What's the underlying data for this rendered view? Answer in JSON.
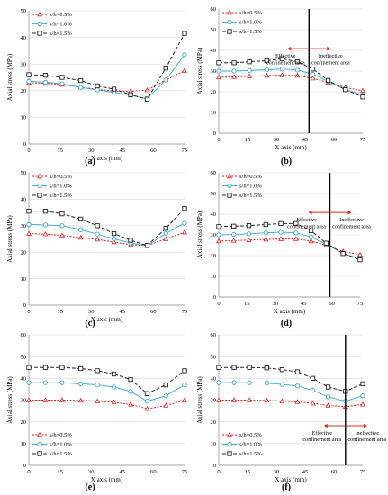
{
  "figure": {
    "panel_labels": [
      "(a)",
      "(b)",
      "(c)",
      "(d)",
      "(e)",
      "(f)"
    ]
  },
  "colors": {
    "s05": "#e02020",
    "s10": "#3aa6d8",
    "s15": "#222222",
    "divider": "#000000",
    "arrow": "#d62b1e",
    "grid": "#d9d9d9"
  },
  "chart_data": [
    {
      "panel": "(a)",
      "type": "line",
      "xlabel": "X axis (mm)",
      "ylabel": "Axial stress (MPa)",
      "xlim": [
        0,
        75
      ],
      "ylim": [
        0,
        50
      ],
      "xticks": [
        "0",
        "15",
        "30",
        "45",
        "60",
        "75"
      ],
      "yticks": [
        "0",
        "10",
        "20",
        "30",
        "40",
        "50"
      ],
      "legend_position": "top-left",
      "grid": true,
      "series": [
        {
          "name": "s/h=0.5%",
          "x": [
            0,
            8,
            16,
            25,
            33,
            41,
            49,
            57,
            66,
            75
          ],
          "values": [
            23,
            22.8,
            22.3,
            21.3,
            20.5,
            19.8,
            19.8,
            20.2,
            24,
            27.5
          ]
        },
        {
          "name": "s/h=1.0%",
          "x": [
            0,
            8,
            16,
            25,
            33,
            41,
            49,
            57,
            66,
            75
          ],
          "values": [
            23.5,
            23.2,
            22.6,
            21.2,
            20.3,
            19.4,
            18.3,
            17,
            24,
            33.5
          ]
        },
        {
          "name": "s/h=1.5%",
          "x": [
            0,
            8,
            16,
            25,
            33,
            41,
            49,
            57,
            66,
            75
          ],
          "values": [
            26,
            25.8,
            25,
            23.8,
            21.8,
            20.6,
            18.5,
            16.8,
            28.5,
            41.5
          ]
        }
      ],
      "annotations": [],
      "divider_x": null
    },
    {
      "panel": "(b)",
      "type": "line",
      "xlabel": "X axis (mm)",
      "ylabel": "Axial stress (MPa)",
      "xlim": [
        0,
        75
      ],
      "ylim": [
        0,
        60
      ],
      "xticks": [
        "0",
        "15",
        "30",
        "45",
        "60",
        "75"
      ],
      "yticks": [
        "0",
        "10",
        "20",
        "30",
        "40",
        "50",
        "60"
      ],
      "legend_position": "top-left",
      "grid": true,
      "series": [
        {
          "name": "s/h=0.5%",
          "x": [
            0,
            8,
            16,
            25,
            33,
            41,
            49,
            57,
            66,
            75
          ],
          "values": [
            27,
            27.2,
            27.5,
            27.8,
            28,
            27.8,
            26.5,
            24.5,
            22,
            20.5
          ]
        },
        {
          "name": "s/h=1.0%",
          "x": [
            0,
            8,
            16,
            25,
            33,
            41,
            49,
            57,
            66,
            75
          ],
          "values": [
            30,
            30,
            30.3,
            30.6,
            31,
            30.5,
            28.5,
            25,
            21,
            18.5
          ]
        },
        {
          "name": "s/h=1.5%",
          "x": [
            0,
            8,
            16,
            25,
            33,
            41,
            49,
            57,
            66,
            75
          ],
          "values": [
            34,
            34,
            34.5,
            35,
            36,
            34.5,
            31,
            25.5,
            21,
            17.5
          ]
        }
      ],
      "annotations": [
        "Effective confinement area",
        "Ineffective confinement area"
      ],
      "divider_x": 47
    },
    {
      "panel": "(c)",
      "type": "line",
      "xlabel": "X axis (mm)",
      "ylabel": "Axial stress (MPa)",
      "xlim": [
        0,
        75
      ],
      "ylim": [
        0,
        50
      ],
      "xticks": [
        "0",
        "15",
        "30",
        "45",
        "60",
        "75"
      ],
      "yticks": [
        "0",
        "10",
        "20",
        "30",
        "40",
        "50"
      ],
      "legend_position": "top-left",
      "grid": true,
      "series": [
        {
          "name": "s/h=0.5%",
          "x": [
            0,
            8,
            16,
            25,
            33,
            41,
            49,
            57,
            66,
            75
          ],
          "values": [
            27,
            26.8,
            26.3,
            25.5,
            24.8,
            23.8,
            22.8,
            22.5,
            25,
            27.5
          ]
        },
        {
          "name": "s/h=1.0%",
          "x": [
            0,
            8,
            16,
            25,
            33,
            41,
            49,
            57,
            66,
            75
          ],
          "values": [
            30.5,
            30.3,
            30,
            28.5,
            26.8,
            25,
            23.5,
            22.5,
            27,
            31
          ]
        },
        {
          "name": "s/h=1.5%",
          "x": [
            0,
            8,
            16,
            25,
            33,
            41,
            49,
            57,
            66,
            75
          ],
          "values": [
            35.5,
            35.5,
            34.5,
            32.5,
            30,
            27,
            24.5,
            22.5,
            29,
            36.5
          ]
        }
      ],
      "annotations": [],
      "divider_x": null
    },
    {
      "panel": "(d)",
      "type": "line",
      "xlabel": "X axis (mm)",
      "ylabel": "Axial stress (MPa)",
      "xlim": [
        0,
        75
      ],
      "ylim": [
        0,
        60
      ],
      "xticks": [
        "0",
        "15",
        "30",
        "45",
        "60",
        "75"
      ],
      "yticks": [
        "0",
        "10",
        "20",
        "30",
        "40",
        "50",
        "60"
      ],
      "legend_position": "top-left",
      "grid": true,
      "series": [
        {
          "name": "s/h=0.5%",
          "x": [
            0,
            8,
            16,
            25,
            33,
            41,
            49,
            57,
            66,
            75
          ],
          "values": [
            27,
            27.2,
            27.5,
            27.8,
            28,
            28,
            27,
            25,
            22,
            20.5
          ]
        },
        {
          "name": "s/h=1.0%",
          "x": [
            0,
            8,
            16,
            25,
            33,
            41,
            49,
            57,
            66,
            75
          ],
          "values": [
            30,
            30.2,
            30.5,
            31,
            31.3,
            31,
            29,
            25.5,
            21,
            18.5
          ]
        },
        {
          "name": "s/h=1.5%",
          "x": [
            0,
            8,
            16,
            25,
            33,
            41,
            49,
            57,
            66,
            75
          ],
          "values": [
            34,
            34.2,
            34.5,
            35,
            35.5,
            35.5,
            32,
            26,
            21,
            18
          ]
        }
      ],
      "annotations": [
        "Effective confinement area",
        "Ineffective confinement area"
      ],
      "divider_x": 59
    },
    {
      "panel": "(e)",
      "type": "line",
      "xlabel": "X axis (mm)",
      "ylabel": "Axial stress (MPa)",
      "xlim": [
        0,
        75
      ],
      "ylim": [
        0,
        60
      ],
      "xticks": [
        "0",
        "15",
        "30",
        "45",
        "60",
        "75"
      ],
      "yticks": [
        "0",
        "10",
        "20",
        "30",
        "40",
        "50",
        "60"
      ],
      "legend_position": "bottom-left",
      "grid": true,
      "series": [
        {
          "name": "s/h=0.5%",
          "x": [
            0,
            8,
            16,
            25,
            33,
            41,
            49,
            57,
            66,
            75
          ],
          "values": [
            30,
            30,
            30,
            29.8,
            29.5,
            29,
            28,
            26,
            27.5,
            30
          ]
        },
        {
          "name": "s/h=1.0%",
          "x": [
            0,
            8,
            16,
            25,
            33,
            41,
            49,
            57,
            66,
            75
          ],
          "values": [
            38,
            38,
            38,
            37.5,
            37,
            36,
            34,
            29.5,
            32,
            37
          ]
        },
        {
          "name": "s/h=1.5%",
          "x": [
            0,
            8,
            16,
            25,
            33,
            41,
            49,
            57,
            66,
            75
          ],
          "values": [
            45,
            45,
            45,
            44.5,
            43.5,
            42,
            39.5,
            33,
            37,
            43.5
          ]
        }
      ],
      "annotations": [],
      "divider_x": null
    },
    {
      "panel": "(f)",
      "type": "line",
      "xlabel": "X axis (mm)",
      "ylabel": "Axial stress (MPa)",
      "xlim": [
        0,
        75
      ],
      "ylim": [
        0,
        60
      ],
      "xticks": [
        "0",
        "15",
        "30",
        "45",
        "60",
        "75"
      ],
      "yticks": [
        "0",
        "10",
        "20",
        "30",
        "40",
        "50",
        "60"
      ],
      "legend_position": "bottom-left",
      "grid": true,
      "series": [
        {
          "name": "s/h=0.5%",
          "x": [
            0,
            8,
            16,
            25,
            33,
            41,
            49,
            57,
            66,
            75
          ],
          "values": [
            30,
            30,
            30,
            29.8,
            29.5,
            29.2,
            28.5,
            27.5,
            27,
            28
          ]
        },
        {
          "name": "s/h=1.0%",
          "x": [
            0,
            8,
            16,
            25,
            33,
            41,
            49,
            57,
            66,
            75
          ],
          "values": [
            38,
            38,
            38,
            37.8,
            37.2,
            36.5,
            34.5,
            31.5,
            29.5,
            32
          ]
        },
        {
          "name": "s/h=1.5%",
          "x": [
            0,
            8,
            16,
            25,
            33,
            41,
            49,
            57,
            66,
            75
          ],
          "values": [
            45,
            45,
            45,
            44.8,
            44,
            43,
            40,
            36,
            34,
            37.5
          ]
        }
      ],
      "annotations": [
        "Effective confinement area",
        "Ineffective confinement area"
      ],
      "divider_x": 66
    }
  ]
}
